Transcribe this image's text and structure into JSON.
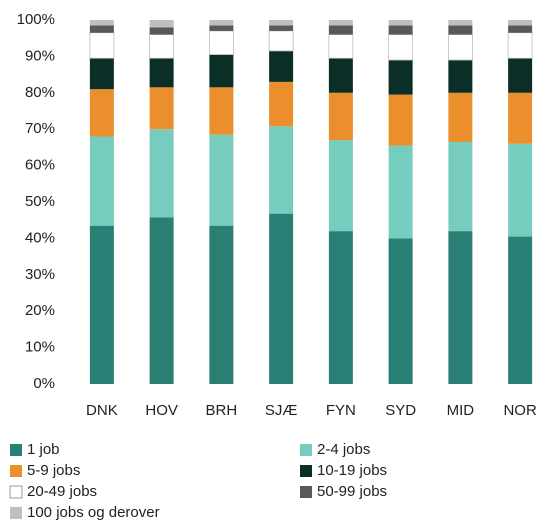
{
  "chart_data": {
    "type": "stacked_bar",
    "categories": [
      "DNK",
      "HOV",
      "BRH",
      "SJÆ",
      "FYN",
      "SYD",
      "MID",
      "NOR"
    ],
    "series": [
      {
        "name": "1 job",
        "color": "#2a7f75",
        "values": [
          43.5,
          45.8,
          43.5,
          46.8,
          42,
          40,
          42,
          40.5
        ]
      },
      {
        "name": "2-4 jobs",
        "color": "#76cdbf",
        "values": [
          24.5,
          24.2,
          25,
          24,
          25,
          25.5,
          24.5,
          25.5
        ]
      },
      {
        "name": "5-9 jobs",
        "color": "#ea8f2b",
        "values": [
          13,
          11.5,
          13,
          12.2,
          13,
          14,
          13.5,
          14
        ]
      },
      {
        "name": "10-19 jobs",
        "color": "#0b2f27",
        "values": [
          8.5,
          8,
          9,
          8.5,
          9.5,
          9.5,
          9,
          9.5
        ]
      },
      {
        "name": "20-49 jobs",
        "color": "#ffffff",
        "values": [
          7,
          6.5,
          6.5,
          5.5,
          6.5,
          7,
          7,
          7
        ]
      },
      {
        "name": "50-99 jobs",
        "color": "#595959",
        "values": [
          2,
          2,
          1.5,
          1.5,
          2.5,
          2.5,
          2.5,
          2
        ]
      },
      {
        "name": "100 jobs og derover",
        "color": "#bfbfbf",
        "values": [
          1.5,
          2,
          1.5,
          1.5,
          1.5,
          1.5,
          1.5,
          1.5
        ]
      }
    ],
    "ylim": [
      0,
      100
    ],
    "yticks": [
      {
        "value": 0,
        "label": "0%"
      },
      {
        "value": 10,
        "label": "10%"
      },
      {
        "value": 20,
        "label": "20%"
      },
      {
        "value": 30,
        "label": "30%"
      },
      {
        "value": 40,
        "label": "40%"
      },
      {
        "value": 50,
        "label": "50%"
      },
      {
        "value": 60,
        "label": "60%"
      },
      {
        "value": 70,
        "label": "70%"
      },
      {
        "value": 80,
        "label": "80%"
      },
      {
        "value": 90,
        "label": "90%"
      },
      {
        "value": 100,
        "label": "100%"
      }
    ],
    "grid": false
  }
}
